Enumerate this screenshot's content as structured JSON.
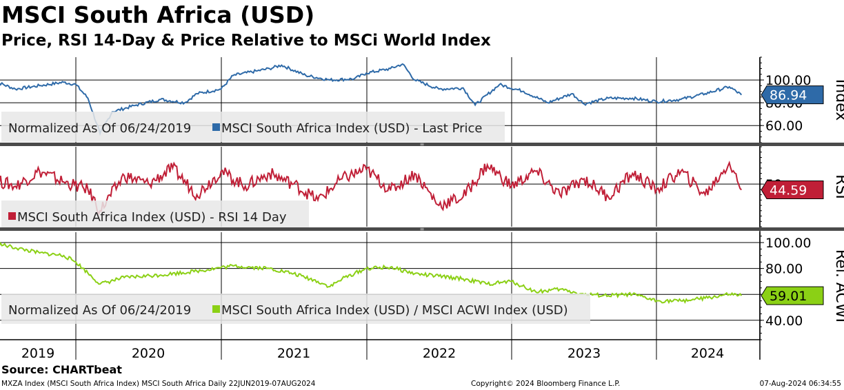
{
  "header": {
    "title": "MSCI South Africa (USD)",
    "subtitle": "Price, RSI 14-Day & Price Relative to MSCi World Index"
  },
  "source": "Source: CHARTbeat",
  "footer": {
    "left": "MXZA Index (MSCI South Africa Index) MSCI South Africa  Daily 22JUN2019-07AUG2024",
    "center": "Copyright© 2024 Bloomberg Finance L.P.",
    "right": "07-Aug-2024 06:34:55"
  },
  "colors": {
    "price": "#2e6aa8",
    "rsi": "#c01f37",
    "relative": "#8bd015",
    "grid": "#000000",
    "legend_bg": "#e8e8e8",
    "divider": "#4a4a4a"
  },
  "chart_data": [
    {
      "type": "line",
      "axis_title": "Index",
      "legend_prefix": "Normalized As Of 06/24/2019",
      "series": [
        {
          "name": "MSCI South Africa Index (USD) - Last Price",
          "x": [
            "2019-06",
            "2019-08",
            "2019-10",
            "2019-12",
            "2020-01",
            "2020-02",
            "2020-03",
            "2020-04",
            "2020-06",
            "2020-08",
            "2020-10",
            "2020-11",
            "2021-01",
            "2021-02",
            "2021-04",
            "2021-05",
            "2021-06",
            "2021-08",
            "2021-10",
            "2021-12",
            "2022-01",
            "2022-03",
            "2022-04",
            "2022-05",
            "2022-07",
            "2022-09",
            "2022-10",
            "2022-12",
            "2023-02",
            "2023-04",
            "2023-06",
            "2023-07",
            "2023-09",
            "2023-11",
            "2024-01",
            "2024-03",
            "2024-05",
            "2024-07",
            "2024-08"
          ],
          "values": [
            100,
            92,
            95,
            98,
            96,
            84,
            53,
            72,
            78,
            83,
            80,
            88,
            92,
            104,
            108,
            110,
            113,
            104,
            100,
            101,
            106,
            110,
            114,
            100,
            92,
            93,
            78,
            96,
            90,
            80,
            88,
            79,
            84,
            84,
            81,
            83,
            88,
            94,
            86.94
          ]
        }
      ],
      "ylim": [
        45,
        120
      ],
      "yticks": [
        100.0,
        80.0,
        60.0
      ],
      "last_value": "86.94",
      "grid": true
    },
    {
      "type": "line",
      "axis_title": "RSI",
      "series": [
        {
          "name": "MSCI South Africa Index (USD) - RSI 14 Day",
          "x": [
            "2019-06",
            "2019-08",
            "2019-10",
            "2019-12",
            "2020-02",
            "2020-03",
            "2020-05",
            "2020-07",
            "2020-09",
            "2020-11",
            "2021-01",
            "2021-03",
            "2021-05",
            "2021-07",
            "2021-09",
            "2021-11",
            "2022-01",
            "2022-03",
            "2022-05",
            "2022-07",
            "2022-09",
            "2022-11",
            "2023-01",
            "2023-03",
            "2023-05",
            "2023-07",
            "2023-09",
            "2023-11",
            "2024-01",
            "2024-03",
            "2024-05",
            "2024-07",
            "2024-08"
          ],
          "values": [
            55,
            48,
            62,
            52,
            45,
            25,
            58,
            50,
            65,
            40,
            62,
            48,
            60,
            50,
            35,
            55,
            64,
            44,
            60,
            30,
            38,
            68,
            48,
            62,
            40,
            55,
            38,
            60,
            45,
            62,
            40,
            70,
            44.59
          ]
        }
      ],
      "ylim": [
        10,
        85
      ],
      "yticks": [
        50
      ],
      "last_value": "44.59",
      "grid": true
    },
    {
      "type": "line",
      "axis_title": "Rel. ACWI",
      "legend_prefix": "Normalized As Of 06/24/2019",
      "series": [
        {
          "name": "MSCI South Africa Index (USD) / MSCI ACWI Index (USD)",
          "x": [
            "2019-06",
            "2019-08",
            "2019-10",
            "2019-12",
            "2020-01",
            "2020-03",
            "2020-05",
            "2020-08",
            "2020-11",
            "2021-02",
            "2021-05",
            "2021-07",
            "2021-09",
            "2021-10",
            "2021-11",
            "2022-01",
            "2022-03",
            "2022-05",
            "2022-07",
            "2022-09",
            "2022-11",
            "2023-01",
            "2023-03",
            "2023-05",
            "2023-07",
            "2023-09",
            "2023-11",
            "2024-01",
            "2024-03",
            "2024-05",
            "2024-07",
            "2024-08"
          ],
          "values": [
            100,
            96,
            92,
            90,
            85,
            68,
            73,
            75,
            78,
            82,
            80,
            76,
            70,
            66,
            72,
            80,
            81,
            76,
            74,
            72,
            68,
            70,
            62,
            64,
            60,
            59,
            60,
            55,
            55,
            57,
            60,
            59.01
          ]
        }
      ],
      "ylim": [
        25,
        108
      ],
      "yticks": [
        100.0,
        80.0,
        60.0,
        40.0
      ],
      "last_value": "59.01",
      "grid": true
    }
  ],
  "x_axis": {
    "years": [
      "2019",
      "2020",
      "2021",
      "2022",
      "2023",
      "2024"
    ]
  }
}
